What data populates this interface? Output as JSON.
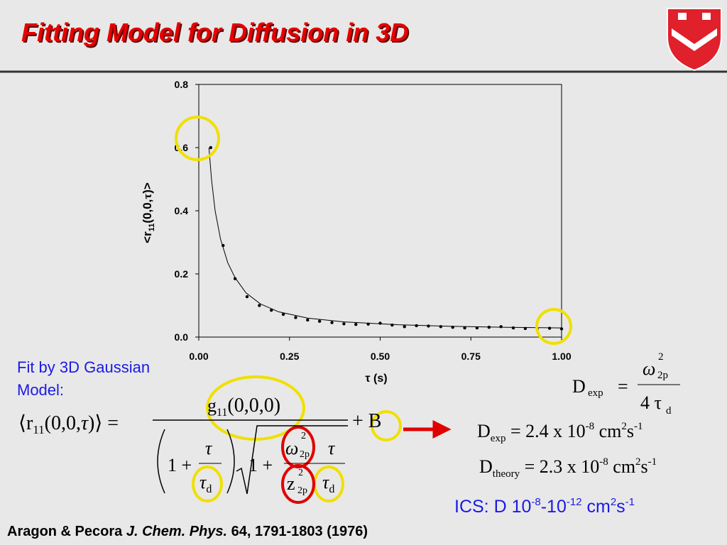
{
  "title": "Fitting Model for Diffusion in 3D",
  "chart_data": {
    "type": "scatter",
    "x_label": "τ (s)",
    "y_label": [
      "<r",
      "11",
      "(0,0,",
      "τ",
      ")>"
    ],
    "xlim": [
      0,
      1
    ],
    "xticks": [
      {
        "value": 0,
        "label": "0.00"
      },
      {
        "value": 0.25,
        "label": "0.25"
      },
      {
        "value": 0.5,
        "label": "0.50"
      },
      {
        "value": 0.75,
        "label": "0.75"
      },
      {
        "value": 1,
        "label": "1.00"
      }
    ],
    "ylim": [
      0,
      0.8
    ],
    "yticks": [
      {
        "value": 0,
        "label": "0.0"
      },
      0.2,
      0.4,
      0.6,
      0.8
    ],
    "series": [
      {
        "mode": "markers",
        "color": "#000000",
        "x": [
          0.033,
          0.067,
          0.1,
          0.133,
          0.167,
          0.2,
          0.233,
          0.267,
          0.3,
          0.333,
          0.367,
          0.4,
          0.433,
          0.467,
          0.5,
          0.533,
          0.567,
          0.6,
          0.633,
          0.667,
          0.7,
          0.733,
          0.767,
          0.8,
          0.833,
          0.867,
          0.9,
          0.933,
          0.967,
          1.0
        ],
        "values": [
          0.6,
          0.29,
          0.185,
          0.128,
          0.1,
          0.085,
          0.072,
          0.062,
          0.054,
          0.05,
          0.046,
          0.042,
          0.04,
          0.041,
          0.044,
          0.038,
          0.033,
          0.036,
          0.035,
          0.033,
          0.031,
          0.029,
          0.029,
          0.031,
          0.033,
          0.029,
          0.027,
          0.026,
          0.028,
          0.026
        ]
      },
      {
        "mode": "line",
        "color": "#000000",
        "x": [
          0.028,
          0.035,
          0.045,
          0.06,
          0.08,
          0.1,
          0.13,
          0.17,
          0.22,
          0.3,
          0.4,
          0.55,
          0.7,
          0.85,
          1.0
        ],
        "values": [
          0.6,
          0.5,
          0.4,
          0.31,
          0.235,
          0.188,
          0.14,
          0.105,
          0.08,
          0.06,
          0.048,
          0.039,
          0.034,
          0.031,
          0.029
        ]
      }
    ]
  },
  "fit_label": [
    "Fit by 3D Gaussian",
    "Model:"
  ],
  "model": {
    "lhs": [
      "⟨",
      "r",
      "11",
      "(0,0,",
      "τ",
      ")⟩",
      " ="
    ],
    "numerator": [
      "g",
      "11",
      "(0,0,0)"
    ],
    "plus_b": "+ B",
    "den_left": "1 +",
    "tau": "τ",
    "tau_d": [
      "τ",
      "d"
    ],
    "den_right": "1 +",
    "omega": [
      "ω",
      "2",
      "2p"
    ],
    "z": [
      "z",
      "2",
      "2p"
    ],
    "tau2": "τ",
    "tau_d2": [
      "τ",
      "d"
    ]
  },
  "d_exp_def": [
    "D",
    "exp",
    "=",
    "ω",
    "2",
    "2p",
    "4 τ",
    "d"
  ],
  "d_exp": [
    "D",
    "exp",
    " = 2.4 x 10",
    "-8",
    " cm",
    "2",
    "s",
    "-1"
  ],
  "d_theory": [
    "D",
    "theory",
    " = 2.3 x 10",
    "-8",
    " cm",
    "2",
    "s",
    "-1"
  ],
  "ics": [
    "ICS: D 10",
    "-8",
    "-10",
    "-12",
    " cm",
    "2",
    "s",
    "-1"
  ],
  "citation": [
    "Aragon & Pecora ",
    "J. Chem. Phys.",
    " 64, 1791-1803 (1976)"
  ]
}
